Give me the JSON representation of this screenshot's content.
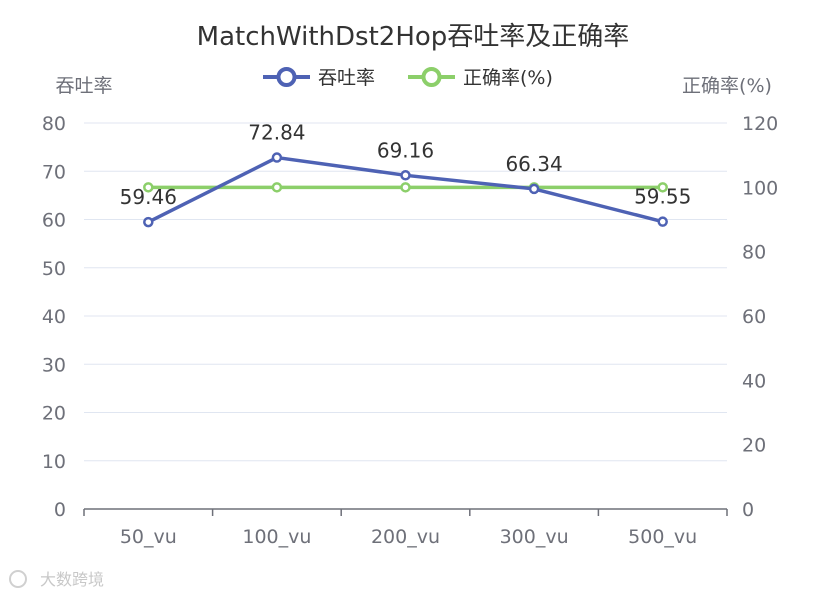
{
  "chart_data": {
    "type": "line",
    "title": "MatchWithDst2Hop吞吐率及正确率",
    "categories": [
      "50_vu",
      "100_vu",
      "200_vu",
      "300_vu",
      "500_vu"
    ],
    "y_left": {
      "name": "吞吐率",
      "min": 0,
      "max": 80,
      "ticks": [
        "0",
        "10",
        "20",
        "30",
        "40",
        "50",
        "60",
        "70",
        "80"
      ]
    },
    "y_right": {
      "name": "正确率(%)",
      "min": 0,
      "max": 120,
      "ticks": [
        "0",
        "20",
        "40",
        "60",
        "80",
        "100",
        "120"
      ]
    },
    "series": [
      {
        "name": "吞吐率",
        "axis": "left",
        "color": "#4e62b4",
        "values": [
          59.46,
          72.84,
          69.16,
          66.34,
          59.55
        ],
        "labels": [
          "59.46",
          "72.84",
          "69.16",
          "66.34",
          "59.55"
        ]
      },
      {
        "name": "正确率(%)",
        "axis": "right",
        "color": "#8ccf6a",
        "values": [
          100,
          100,
          100,
          100,
          100
        ]
      }
    ],
    "legend": "top-center",
    "grid": true
  },
  "watermark": {
    "text": "大数跨境"
  }
}
